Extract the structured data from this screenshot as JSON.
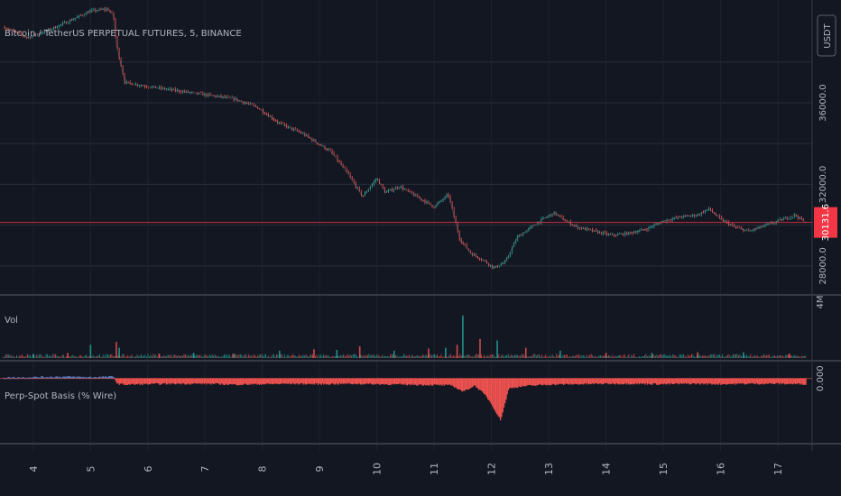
{
  "header": {
    "symbol_title": "Bitcoin / TetherUS PERPETUAL FUTURES, 5, BINANCE",
    "currency": "USDT"
  },
  "colors": {
    "background": "#131722",
    "grid": "#2a2e39",
    "candle_up": "#26a69a",
    "candle_down": "#ef5350",
    "last_price": "#f23645",
    "basis_pos": "#5b7dc6",
    "basis_neg": "#f05350",
    "separator": "#363a45"
  },
  "chart_data": [
    {
      "type": "line",
      "title": "Bitcoin / TetherUS PERPETUAL FUTURES, 5, BINANCE",
      "ylabel": "USDT",
      "ylim": [
        26800,
        40600
      ],
      "y_ticks": [
        {
          "value": 36000,
          "label": "36000.0"
        },
        {
          "value": 32000,
          "label": "32000.0"
        },
        {
          "value": 28000,
          "label": "28000.0"
        }
      ],
      "last_price": {
        "value": 30131.6,
        "label": "30131.6"
      },
      "grid": true,
      "x": [
        3.5,
        3.9,
        4.3,
        4.7,
        5.0,
        5.3,
        5.4,
        5.45,
        5.6,
        6.0,
        6.5,
        7.0,
        7.5,
        7.9,
        8.3,
        8.7,
        9.2,
        9.5,
        9.75,
        10.0,
        10.15,
        10.4,
        10.7,
        11.0,
        11.25,
        11.45,
        11.65,
        11.85,
        12.05,
        12.25,
        12.45,
        12.7,
        12.9,
        13.1,
        13.3,
        13.5,
        13.8,
        14.1,
        14.4,
        14.7,
        15.0,
        15.3,
        15.6,
        15.8,
        16.0,
        16.25,
        16.5,
        16.8,
        17.1,
        17.3,
        17.5
      ],
      "values": [
        39700,
        39200,
        39600,
        40100,
        40500,
        40600,
        40300,
        38900,
        37000,
        36800,
        36600,
        36400,
        36200,
        35800,
        35000,
        34500,
        33600,
        32500,
        31400,
        32300,
        31600,
        31900,
        31400,
        30900,
        31500,
        29300,
        28600,
        28300,
        27900,
        28200,
        29400,
        29900,
        30300,
        30600,
        30200,
        29900,
        29700,
        29500,
        29600,
        29800,
        30200,
        30400,
        30500,
        30800,
        30300,
        29900,
        29700,
        30000,
        30300,
        30500,
        30100
      ]
    },
    {
      "type": "bar",
      "title": "Vol",
      "ylim": [
        0,
        4000000
      ],
      "y_ticks": [
        {
          "value": 4000000,
          "label": "4M"
        }
      ],
      "x": [
        4.0,
        4.6,
        5.0,
        5.45,
        5.5,
        6.2,
        6.8,
        7.5,
        8.3,
        8.9,
        9.3,
        9.7,
        10.3,
        10.9,
        11.2,
        11.4,
        11.5,
        11.8,
        12.1,
        12.6,
        13.2,
        14.0,
        14.8,
        15.6,
        16.4,
        17.2
      ],
      "values": [
        280000,
        350000,
        900000,
        1100000,
        700000,
        300000,
        350000,
        300000,
        500000,
        600000,
        550000,
        800000,
        500000,
        650000,
        700000,
        900000,
        2900000,
        1300000,
        1200000,
        700000,
        500000,
        350000,
        350000,
        400000,
        400000,
        300000
      ]
    },
    {
      "type": "area",
      "title": "Perp-Spot Basis (% Wire)",
      "ylim": [
        -0.14,
        0.03
      ],
      "y_ticks": [
        {
          "value": 0.0,
          "label": "0.000"
        }
      ],
      "x": [
        3.5,
        4.0,
        4.5,
        5.0,
        5.4,
        5.45,
        5.6,
        6.0,
        6.5,
        7.0,
        7.5,
        8.0,
        8.5,
        9.0,
        9.5,
        10.0,
        10.5,
        11.0,
        11.3,
        11.5,
        11.7,
        11.9,
        12.0,
        12.15,
        12.3,
        12.6,
        13.0,
        13.5,
        14.0,
        14.5,
        15.0,
        15.5,
        16.0,
        16.5,
        17.0,
        17.5
      ],
      "values": [
        0.002,
        0.003,
        0.004,
        0.003,
        0.004,
        -0.012,
        -0.014,
        -0.013,
        -0.012,
        -0.012,
        -0.014,
        -0.013,
        -0.012,
        -0.013,
        -0.012,
        -0.013,
        -0.014,
        -0.015,
        -0.016,
        -0.03,
        -0.016,
        -0.04,
        -0.06,
        -0.095,
        -0.022,
        -0.017,
        -0.014,
        -0.013,
        -0.012,
        -0.012,
        -0.013,
        -0.012,
        -0.013,
        -0.012,
        -0.012,
        -0.013
      ]
    }
  ],
  "x_axis": {
    "ticks": [
      {
        "value": 4,
        "label": "4"
      },
      {
        "value": 5,
        "label": "5"
      },
      {
        "value": 6,
        "label": "6"
      },
      {
        "value": 7,
        "label": "7"
      },
      {
        "value": 8,
        "label": "8"
      },
      {
        "value": 9,
        "label": "9"
      },
      {
        "value": 10,
        "label": "10"
      },
      {
        "value": 11,
        "label": "11"
      },
      {
        "value": 12,
        "label": "12"
      },
      {
        "value": 13,
        "label": "13"
      },
      {
        "value": 14,
        "label": "14"
      },
      {
        "value": 15,
        "label": "15"
      },
      {
        "value": 16,
        "label": "16"
      },
      {
        "value": 17,
        "label": "17"
      }
    ]
  }
}
